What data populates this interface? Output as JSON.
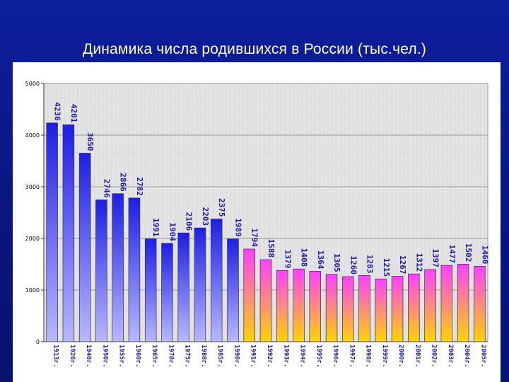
{
  "slide": {
    "title": "Динамика числа родившихся в России (тыс.чел.)"
  },
  "colors": {
    "blue_top": "#1e1ee6",
    "blue_bottom": "#b8b8ff",
    "pink_top": "#ff40ff",
    "pink_bottom": "#ffd400",
    "label": "#1a1aa8"
  },
  "chart_data": {
    "type": "bar",
    "title": "",
    "xlabel": "",
    "ylabel": "",
    "ylim": [
      0,
      5000
    ],
    "yticks": [
      0,
      1000,
      2000,
      3000,
      4000,
      5000
    ],
    "grid": true,
    "legend": "none",
    "categories": [
      "1913г.",
      "1926г.",
      "1940г.",
      "1950г.",
      "1955г.",
      "1960г.",
      "1965г.",
      "1970г.",
      "1975г.",
      "1980г.",
      "1985г.",
      "1990г.",
      "1991г.",
      "1992г.",
      "1993г.",
      "1994г.",
      "1995г.",
      "1996г.",
      "1997г.",
      "1998г.",
      "1999г.",
      "2000г.",
      "2001г.",
      "2002г.",
      "2003г.",
      "2004г.",
      "2005г."
    ],
    "values": [
      4236,
      4201,
      3650,
      2746,
      2866,
      2782,
      1991,
      1904,
      2106,
      2203,
      2375,
      1989,
      1794,
      1588,
      1379,
      1408,
      1364,
      1305,
      1260,
      1283,
      1215,
      1267,
      1312,
      1397,
      1477,
      1502,
      1460
    ],
    "value_labels": [
      "4236",
      "4201",
      "3650",
      "2746",
      "2866",
      "2782",
      "1991",
      "1904",
      "2106",
      "2203",
      "2375",
      "1989",
      "1794",
      "1588",
      "1379",
      "1408",
      "1364",
      "1305",
      "1260",
      "1283",
      "1215",
      "1267",
      "1312",
      "1397",
      "1477",
      "1502",
      "1460"
    ],
    "color_groups": [
      "blue",
      "blue",
      "blue",
      "blue",
      "blue",
      "blue",
      "blue",
      "blue",
      "blue",
      "blue",
      "blue",
      "blue",
      "pink",
      "pink",
      "pink",
      "pink",
      "pink",
      "pink",
      "pink",
      "pink",
      "pink",
      "pink",
      "pink",
      "pink",
      "pink",
      "pink",
      "pink"
    ]
  }
}
